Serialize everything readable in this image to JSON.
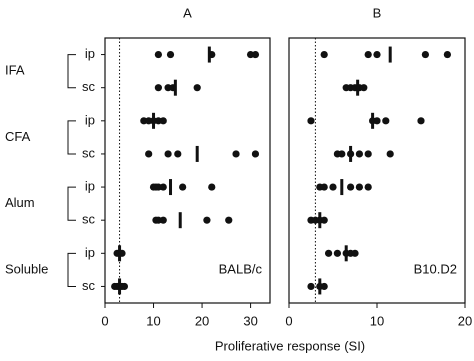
{
  "chart_data": [
    {
      "type": "dotplot",
      "title": "A",
      "annotation": "BALB/c",
      "color": "#111",
      "groups": [
        "IFA",
        "CFA",
        "Alum",
        "Soluble"
      ],
      "categories": [
        "ip",
        "sc",
        "ip",
        "sc",
        "ip",
        "sc",
        "ip",
        "sc"
      ],
      "points": [
        [
          11,
          13.5,
          22,
          30,
          31
        ],
        [
          11,
          13,
          14,
          19
        ],
        [
          8,
          9,
          10,
          11,
          12
        ],
        [
          9,
          13,
          15,
          27,
          31
        ],
        [
          10,
          10.5,
          11,
          12,
          16,
          22
        ],
        [
          10.5,
          11,
          12,
          21,
          25.5
        ],
        [
          2.5,
          3,
          3.5
        ],
        [
          2,
          2.5,
          3,
          3.5,
          4
        ]
      ],
      "means": [
        21.5,
        14.5,
        10,
        19,
        13.5,
        15.5,
        3,
        3
      ],
      "reference_line": 3,
      "xlim": [
        0,
        34
      ],
      "xticks": [
        0,
        10,
        20,
        30
      ],
      "xlabel": "Proliferative response (SI)"
    },
    {
      "type": "dotplot",
      "title": "B",
      "annotation": "B10.D2",
      "color": "#111",
      "categories": [
        "ip",
        "sc",
        "ip",
        "sc",
        "ip",
        "sc",
        "ip",
        "sc"
      ],
      "points": [
        [
          4,
          9,
          10,
          15.5,
          18
        ],
        [
          6.5,
          7,
          7.5,
          8,
          8.5
        ],
        [
          2.5,
          9.5,
          10,
          11,
          15
        ],
        [
          5.5,
          6,
          7,
          8,
          9,
          11.5
        ],
        [
          3.5,
          4,
          5,
          7,
          8,
          9
        ],
        [
          2.5,
          3,
          3.5,
          4
        ],
        [
          4.5,
          5.5,
          6.5,
          7,
          7.5
        ],
        [
          2.5,
          3.5,
          4
        ]
      ],
      "means": [
        11.5,
        7.8,
        9.5,
        7,
        6,
        3.5,
        6.5,
        3.5
      ],
      "reference_line": 3,
      "xlim": [
        0,
        20
      ],
      "xticks": [
        0,
        10,
        20
      ]
    }
  ]
}
